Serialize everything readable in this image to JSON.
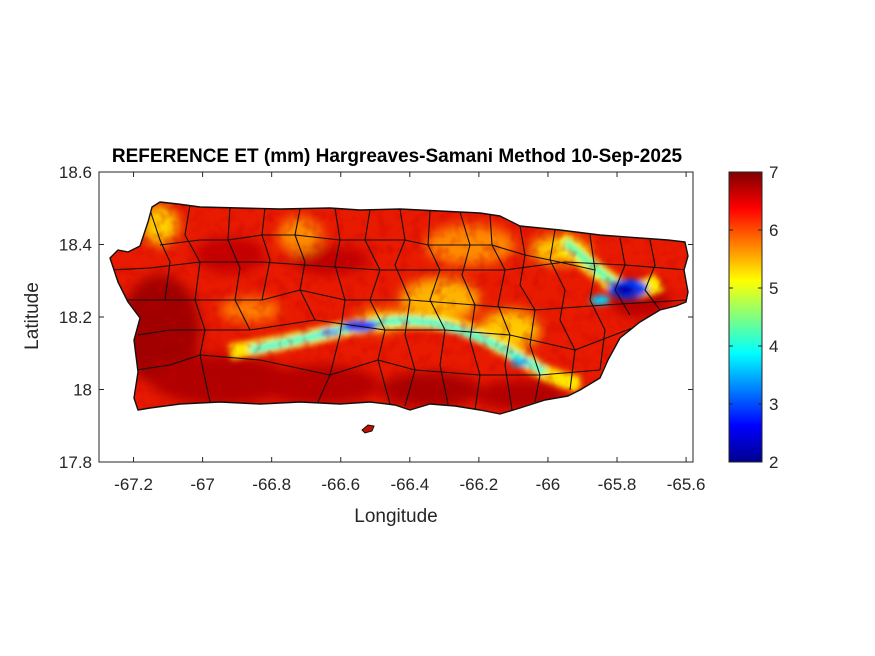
{
  "figure": {
    "title": "REFERENCE ET (mm) Hargreaves-Samani Method  10-Sep-2025",
    "xlabel": "Longitude",
    "ylabel": "Latitude"
  },
  "map": {
    "region": "Puerto Rico",
    "boundaries": "municipality outlines",
    "xlim": [
      -67.3,
      -65.58
    ],
    "ylim": [
      17.8,
      18.6
    ],
    "x_ticks": [
      "-67.2",
      "-67",
      "-66.8",
      "-66.6",
      "-66.4",
      "-66.2",
      "-66",
      "-65.8",
      "-65.6"
    ],
    "x_tick_values": [
      -67.2,
      -67,
      -66.8,
      -66.6,
      -66.4,
      -66.2,
      -66,
      -65.8,
      -65.6
    ],
    "y_ticks": [
      "17.8",
      "18",
      "18.2",
      "18.4",
      "18.6"
    ],
    "y_tick_values": [
      17.8,
      18.0,
      18.2,
      18.4,
      18.6
    ]
  },
  "colorbar": {
    "colormap": "jet",
    "range": [
      2,
      7
    ],
    "ticks": [
      "2",
      "3",
      "4",
      "5",
      "6",
      "7"
    ],
    "tick_values": [
      2,
      3,
      4,
      5,
      6,
      7
    ],
    "colors": [
      "#00008f",
      "#0000ff",
      "#00ffff",
      "#ffff00",
      "#ff0000",
      "#800000"
    ]
  }
}
